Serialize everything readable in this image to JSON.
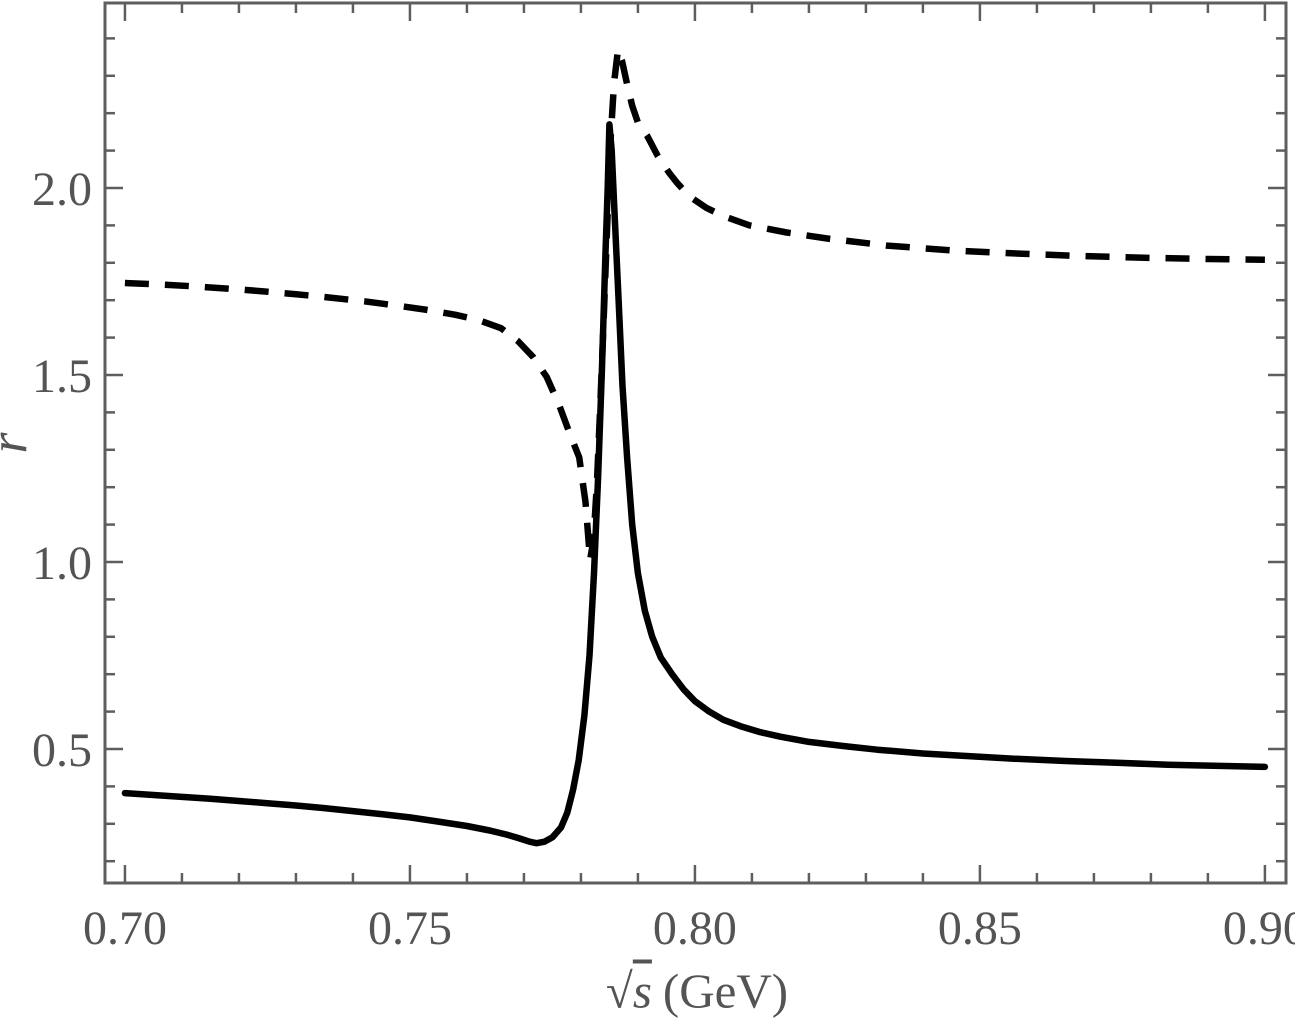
{
  "figure": {
    "background": "#ffffff"
  },
  "chart_data": {
    "type": "line",
    "title": "",
    "xlabel": "√s (GeV)",
    "xlabel_parts": {
      "radical": "√",
      "arg": "s",
      "unit": "(GeV)"
    },
    "ylabel": "r",
    "xlim": [
      0.6965,
      0.9037
    ],
    "ylim": [
      0.1417,
      2.4946
    ],
    "grid": false,
    "legend": null,
    "frame_color": "#5e5e5e",
    "label_color": "#545454",
    "curve_color": "#000000",
    "x_ticks": {
      "major": [
        {
          "value": 0.7,
          "label": "0.70"
        },
        {
          "value": 0.75,
          "label": "0.75"
        },
        {
          "value": 0.8,
          "label": "0.80"
        },
        {
          "value": 0.85,
          "label": "0.85"
        },
        {
          "value": 0.9,
          "label": "0.90"
        }
      ],
      "minor_step": 0.01,
      "minor_range": [
        0.7,
        0.9
      ]
    },
    "y_ticks": {
      "major": [
        {
          "value": 0.5,
          "label": "0.5"
        },
        {
          "value": 1.0,
          "label": "1.0"
        },
        {
          "value": 1.5,
          "label": "1.5"
        },
        {
          "value": 2.0,
          "label": "2.0"
        }
      ],
      "minor_step": 0.1,
      "minor_range": [
        0.2,
        2.4
      ]
    },
    "series": [
      {
        "name": "solid-curve",
        "line_style": "solid",
        "color": "#000000",
        "points": [
          [
            0.7,
            0.382
          ],
          [
            0.705,
            0.377
          ],
          [
            0.71,
            0.372
          ],
          [
            0.715,
            0.367
          ],
          [
            0.72,
            0.361
          ],
          [
            0.725,
            0.355
          ],
          [
            0.73,
            0.349
          ],
          [
            0.735,
            0.342
          ],
          [
            0.74,
            0.334
          ],
          [
            0.745,
            0.326
          ],
          [
            0.75,
            0.317
          ],
          [
            0.755,
            0.306
          ],
          [
            0.76,
            0.294
          ],
          [
            0.764,
            0.282
          ],
          [
            0.767,
            0.271
          ],
          [
            0.769,
            0.262
          ],
          [
            0.771,
            0.252
          ],
          [
            0.7722,
            0.248
          ],
          [
            0.7736,
            0.252
          ],
          [
            0.775,
            0.264
          ],
          [
            0.7765,
            0.29
          ],
          [
            0.7776,
            0.33
          ],
          [
            0.7786,
            0.39
          ],
          [
            0.7796,
            0.47
          ],
          [
            0.7806,
            0.59
          ],
          [
            0.7815,
            0.75
          ],
          [
            0.7823,
            0.97
          ],
          [
            0.783,
            1.22
          ],
          [
            0.7837,
            1.52
          ],
          [
            0.7843,
            1.82
          ],
          [
            0.7847,
            2.0
          ],
          [
            0.785,
            2.17
          ],
          [
            0.7854,
            2.1
          ],
          [
            0.7859,
            1.93
          ],
          [
            0.7866,
            1.7
          ],
          [
            0.7873,
            1.47
          ],
          [
            0.7881,
            1.28
          ],
          [
            0.789,
            1.1
          ],
          [
            0.79,
            0.97
          ],
          [
            0.7912,
            0.87
          ],
          [
            0.7925,
            0.8
          ],
          [
            0.794,
            0.745
          ],
          [
            0.796,
            0.7
          ],
          [
            0.798,
            0.66
          ],
          [
            0.8,
            0.628
          ],
          [
            0.8025,
            0.6
          ],
          [
            0.805,
            0.578
          ],
          [
            0.808,
            0.561
          ],
          [
            0.8115,
            0.545
          ],
          [
            0.815,
            0.533
          ],
          [
            0.82,
            0.519
          ],
          [
            0.826,
            0.508
          ],
          [
            0.832,
            0.498
          ],
          [
            0.84,
            0.488
          ],
          [
            0.848,
            0.481
          ],
          [
            0.856,
            0.474
          ],
          [
            0.865,
            0.468
          ],
          [
            0.874,
            0.463
          ],
          [
            0.883,
            0.458
          ],
          [
            0.891,
            0.455
          ],
          [
            0.9,
            0.452
          ]
        ]
      },
      {
        "name": "dashed-curve",
        "line_style": "dashed",
        "color": "#000000",
        "points": [
          [
            0.7,
            1.746
          ],
          [
            0.706,
            1.742
          ],
          [
            0.712,
            1.737
          ],
          [
            0.718,
            1.731
          ],
          [
            0.724,
            1.724
          ],
          [
            0.73,
            1.716
          ],
          [
            0.736,
            1.707
          ],
          [
            0.742,
            1.697
          ],
          [
            0.748,
            1.685
          ],
          [
            0.753,
            1.674
          ],
          [
            0.758,
            1.661
          ],
          [
            0.762,
            1.647
          ],
          [
            0.766,
            1.625
          ],
          [
            0.769,
            1.59
          ],
          [
            0.7716,
            1.548
          ],
          [
            0.774,
            1.495
          ],
          [
            0.7763,
            1.415
          ],
          [
            0.778,
            1.345
          ],
          [
            0.7797,
            1.28
          ],
          [
            0.7808,
            1.16
          ],
          [
            0.7816,
            1.005
          ],
          [
            0.7822,
            1.06
          ],
          [
            0.7828,
            1.21
          ],
          [
            0.7834,
            1.42
          ],
          [
            0.784,
            1.65
          ],
          [
            0.7846,
            1.9
          ],
          [
            0.7852,
            2.13
          ],
          [
            0.7858,
            2.28
          ],
          [
            0.7865,
            2.37
          ],
          [
            0.7872,
            2.34
          ],
          [
            0.788,
            2.285
          ],
          [
            0.789,
            2.22
          ],
          [
            0.79,
            2.175
          ],
          [
            0.7916,
            2.14
          ],
          [
            0.7935,
            2.085
          ],
          [
            0.7955,
            2.04
          ],
          [
            0.7968,
            2.015
          ],
          [
            0.799,
            1.978
          ],
          [
            0.802,
            1.947
          ],
          [
            0.805,
            1.925
          ],
          [
            0.8096,
            1.9
          ],
          [
            0.8161,
            1.881
          ],
          [
            0.8232,
            1.865
          ],
          [
            0.8337,
            1.846
          ],
          [
            0.845,
            1.833
          ],
          [
            0.856,
            1.825
          ],
          [
            0.868,
            1.818
          ],
          [
            0.88,
            1.813
          ],
          [
            0.89,
            1.81
          ],
          [
            0.9,
            1.808
          ]
        ]
      }
    ]
  }
}
